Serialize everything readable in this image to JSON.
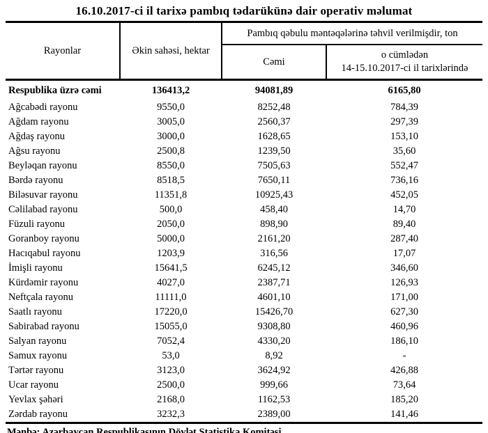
{
  "title": "16.10.2017-ci il tarixə pambıq tədarükünə dair operativ məlumat",
  "table": {
    "headers": {
      "rayonlar": "Rayonlar",
      "ekin_sahesi": "Əkin sahəsi, hektar",
      "group": "Pambıq qəbulu məntəqələrinə təhvil verilmişdir, ton",
      "cemi": "Cəmi",
      "sub_line1": "o cümlədən",
      "sub_line2": "14-15.10.2017-ci il tarixlərində"
    },
    "total_row": {
      "name": "Respublika üzrə cəmi",
      "area": "136413,2",
      "total": "94081,89",
      "recent": "6165,80"
    },
    "rows": [
      {
        "name": "Ağcabədi rayonu",
        "area": "9550,0",
        "total": "8252,48",
        "recent": "784,39"
      },
      {
        "name": "Ağdam rayonu",
        "area": "3005,0",
        "total": "2560,37",
        "recent": "297,39"
      },
      {
        "name": "Ağdaş rayonu",
        "area": "3000,0",
        "total": "1628,65",
        "recent": "153,10"
      },
      {
        "name": "Ağsu rayonu",
        "area": "2500,8",
        "total": "1239,50",
        "recent": "35,60"
      },
      {
        "name": "Beyləqan rayonu",
        "area": "8550,0",
        "total": "7505,63",
        "recent": "552,47"
      },
      {
        "name": "Bərdə rayonu",
        "area": "8518,5",
        "total": "7650,11",
        "recent": "736,16"
      },
      {
        "name": "Biləsuvar rayonu",
        "area": "11351,8",
        "total": "10925,43",
        "recent": "452,05"
      },
      {
        "name": "Cəlilabad rayonu",
        "area": "500,0",
        "total": "458,40",
        "recent": "14,70"
      },
      {
        "name": "Füzuli rayonu",
        "area": "2050,0",
        "total": "898,90",
        "recent": "89,40"
      },
      {
        "name": "Goranboy rayonu",
        "area": "5000,0",
        "total": "2161,20",
        "recent": "287,40"
      },
      {
        "name": "Hacıqabul rayonu",
        "area": "1203,9",
        "total": "316,56",
        "recent": "17,07"
      },
      {
        "name": "İmişli rayonu",
        "area": "15641,5",
        "total": "6245,12",
        "recent": "346,60"
      },
      {
        "name": "Kürdəmir rayonu",
        "area": "4027,0",
        "total": "2387,71",
        "recent": "126,93"
      },
      {
        "name": "Neftçala rayonu",
        "area": "11111,0",
        "total": "4601,10",
        "recent": "171,00"
      },
      {
        "name": "Saatlı rayonu",
        "area": "17220,0",
        "total": "15426,70",
        "recent": "627,30"
      },
      {
        "name": "Sabirabad rayonu",
        "area": "15055,0",
        "total": "9308,80",
        "recent": "460,96"
      },
      {
        "name": "Salyan rayonu",
        "area": "7052,4",
        "total": "4330,20",
        "recent": "186,10"
      },
      {
        "name": "Samux rayonu",
        "area": "53,0",
        "total": "8,92",
        "recent": "-"
      },
      {
        "name": "Tərtər rayonu",
        "area": "3123,0",
        "total": "3624,92",
        "recent": "426,88"
      },
      {
        "name": "Ucar rayonu",
        "area": "2500,0",
        "total": "999,66",
        "recent": "73,64"
      },
      {
        "name": "Yevlax şəhəri",
        "area": "2168,0",
        "total": "1162,53",
        "recent": "185,20"
      },
      {
        "name": "Zərdab rayonu",
        "area": "3232,3",
        "total": "2389,00",
        "recent": "141,46"
      }
    ]
  },
  "footer": "Mənbə: Azərbaycan Respublikasının Dövlət Statistika Komitəsi"
}
